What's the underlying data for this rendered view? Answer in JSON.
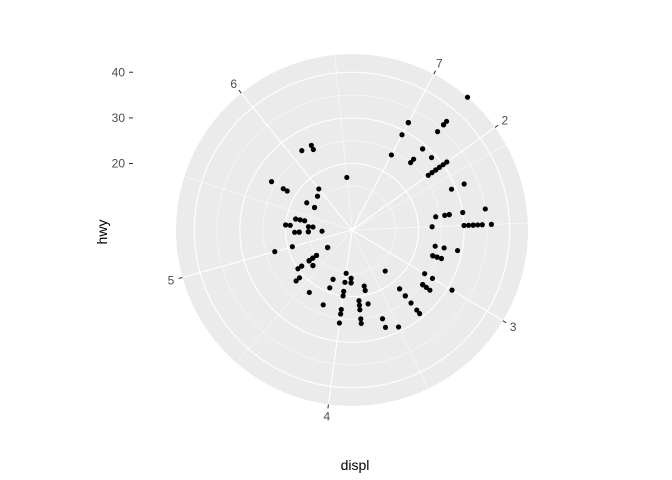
{
  "chart_data": {
    "type": "scatter",
    "coord": "polar",
    "xlabel": "displ",
    "ylabel": "hwy",
    "theta_ticks": [
      "2",
      "3",
      "4",
      "5",
      "6",
      "7"
    ],
    "theta_tick_values": [
      2,
      3,
      4,
      5,
      6,
      7
    ],
    "theta_range": [
      1.6,
      7.0
    ],
    "r_ticks": [
      "20",
      "30",
      "40"
    ],
    "r_tick_values": [
      20,
      30,
      40
    ],
    "r_range": [
      12,
      44
    ],
    "grid": true,
    "colors": {
      "panel": "#ebebeb",
      "grid": "#ffffff",
      "points": "#000000",
      "tick": "#4d4d4d"
    },
    "points": [
      [
        1.8,
        29
      ],
      [
        1.8,
        29
      ],
      [
        2.0,
        31
      ],
      [
        2.0,
        30
      ],
      [
        2.8,
        26
      ],
      [
        2.8,
        26
      ],
      [
        3.1,
        27
      ],
      [
        1.8,
        26
      ],
      [
        1.8,
        25
      ],
      [
        2.0,
        28
      ],
      [
        2.0,
        27
      ],
      [
        2.8,
        25
      ],
      [
        2.8,
        25
      ],
      [
        3.1,
        25
      ],
      [
        3.1,
        25
      ],
      [
        2.8,
        24
      ],
      [
        3.1,
        25
      ],
      [
        4.2,
        23
      ],
      [
        5.3,
        20
      ],
      [
        5.3,
        15
      ],
      [
        5.3,
        20
      ],
      [
        5.7,
        17
      ],
      [
        6.0,
        17
      ],
      [
        5.7,
        26
      ],
      [
        5.7,
        23
      ],
      [
        6.2,
        26
      ],
      [
        6.2,
        25
      ],
      [
        7.0,
        24
      ],
      [
        5.3,
        19
      ],
      [
        5.3,
        14
      ],
      [
        5.7,
        15
      ],
      [
        6.5,
        17
      ],
      [
        2.4,
        27
      ],
      [
        2.4,
        30
      ],
      [
        3.1,
        26
      ],
      [
        3.5,
        29
      ],
      [
        3.6,
        26
      ],
      [
        2.4,
        24
      ],
      [
        3.0,
        24
      ],
      [
        3.3,
        22
      ],
      [
        3.3,
        22
      ],
      [
        3.3,
        24
      ],
      [
        3.3,
        24
      ],
      [
        3.3,
        17
      ],
      [
        3.8,
        22
      ],
      [
        3.8,
        21
      ],
      [
        3.8,
        23
      ],
      [
        4.0,
        23
      ],
      [
        3.7,
        19
      ],
      [
        3.7,
        18
      ],
      [
        3.9,
        17
      ],
      [
        3.9,
        17
      ],
      [
        4.7,
        19
      ],
      [
        4.7,
        19
      ],
      [
        4.7,
        12
      ],
      [
        4.7,
        17
      ],
      [
        5.2,
        15
      ],
      [
        5.2,
        17
      ],
      [
        3.9,
        17
      ],
      [
        4.7,
        12
      ],
      [
        4.7,
        17
      ],
      [
        4.7,
        16
      ],
      [
        5.2,
        18
      ],
      [
        5.7,
        15
      ],
      [
        5.9,
        16
      ],
      [
        4.7,
        12
      ],
      [
        4.7,
        17
      ],
      [
        4.7,
        17
      ],
      [
        4.7,
        16
      ],
      [
        5.2,
        12
      ],
      [
        5.2,
        15
      ],
      [
        3.9,
        16
      ],
      [
        4.7,
        17
      ],
      [
        4.7,
        15
      ],
      [
        5.2,
        17
      ],
      [
        4.6,
        17
      ],
      [
        5.4,
        18
      ],
      [
        5.4,
        17
      ],
      [
        4.0,
        19
      ],
      [
        4.0,
        17
      ],
      [
        4.6,
        17
      ],
      [
        5.0,
        19
      ],
      [
        4.2,
        19
      ],
      [
        4.2,
        17
      ],
      [
        4.6,
        17
      ],
      [
        4.6,
        17
      ],
      [
        5.4,
        16
      ],
      [
        5.4,
        18
      ],
      [
        3.8,
        26
      ],
      [
        3.8,
        25
      ],
      [
        4.0,
        26
      ],
      [
        4.0,
        24
      ],
      [
        4.6,
        21
      ],
      [
        4.6,
        22
      ],
      [
        5.0,
        23
      ],
      [
        1.6,
        32
      ],
      [
        1.6,
        32
      ],
      [
        1.6,
        29
      ],
      [
        1.6,
        32
      ],
      [
        1.8,
        34
      ],
      [
        1.8,
        36
      ],
      [
        1.8,
        36
      ],
      [
        2.0,
        29
      ],
      [
        2.4,
        26
      ],
      [
        2.4,
        27
      ],
      [
        2.5,
        30
      ],
      [
        2.5,
        31
      ],
      [
        3.3,
        26
      ],
      [
        2.0,
        26
      ],
      [
        2.0,
        28
      ],
      [
        2.7,
        26
      ],
      [
        2.7,
        29
      ],
      [
        3.0,
        26
      ],
      [
        3.7,
        22
      ],
      [
        4.0,
        20
      ],
      [
        4.7,
        20
      ],
      [
        5.7,
        22
      ],
      [
        6.1,
        26
      ],
      [
        4.2,
        17
      ],
      [
        4.4,
        22
      ],
      [
        2.5,
        33
      ],
      [
        2.5,
        32
      ],
      [
        2.2,
        32
      ],
      [
        2.2,
        29
      ],
      [
        2.5,
        32
      ],
      [
        2.5,
        34
      ],
      [
        2.5,
        36
      ],
      [
        2.7,
        24
      ],
      [
        1.8,
        44
      ],
      [
        1.8,
        37
      ],
      [
        4.0,
        15
      ],
      [
        4.7,
        15
      ],
      [
        2.4,
        35
      ],
      [
        3.0,
        31
      ],
      [
        3.3,
        28
      ],
      [
        3.3,
        29
      ],
      [
        1.9,
        29
      ],
      [
        2.0,
        29
      ],
      [
        2.5,
        23
      ],
      [
        2.8,
        24
      ],
      [
        3.6,
        28
      ]
    ]
  }
}
